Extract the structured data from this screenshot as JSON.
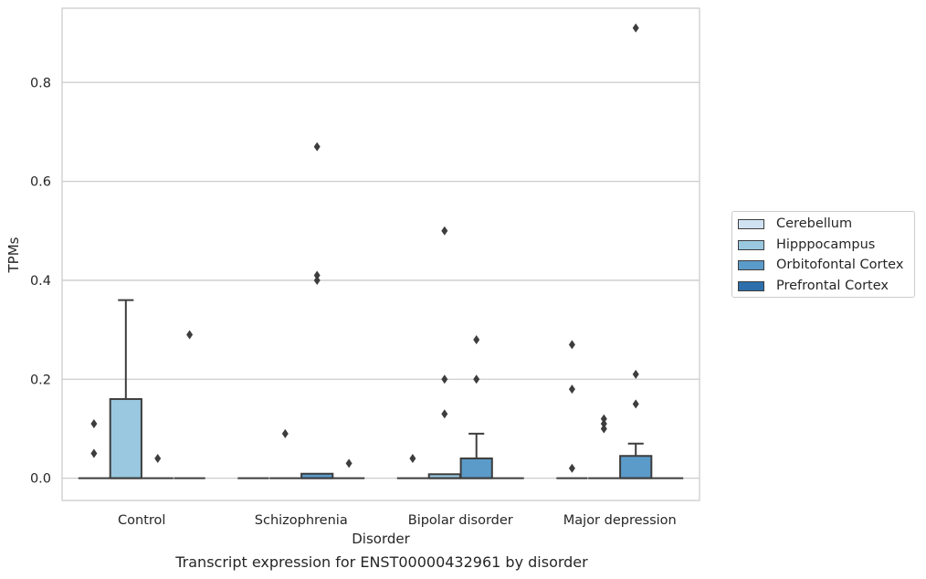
{
  "chart_data": {
    "type": "boxplot",
    "xlabel": "Disorder",
    "ylabel": "TPMs",
    "caption": "Transcript expression for ENST00000432961 by disorder",
    "ylim": [
      -0.045,
      0.95
    ],
    "yticks": [
      0.0,
      0.2,
      0.4,
      0.6,
      0.8
    ],
    "ytick_labels": [
      "0.0",
      "0.2",
      "0.4",
      "0.6",
      "0.8"
    ],
    "grid": "horizontal",
    "legend_position": "right",
    "categories": [
      "Control",
      "Schizophrenia",
      "Bipolar disorder",
      "Major depression"
    ],
    "series": [
      {
        "name": "Cerebellum",
        "color": "#d0e1f2",
        "boxes": [
          {
            "q1": 0,
            "median": 0,
            "q3": 0,
            "whisker_low": 0,
            "whisker_high": 0,
            "outliers": [
              0.11,
              0.05
            ]
          },
          {
            "q1": 0,
            "median": 0,
            "q3": 0,
            "whisker_low": 0,
            "whisker_high": 0,
            "outliers": []
          },
          {
            "q1": 0,
            "median": 0,
            "q3": 0,
            "whisker_low": 0,
            "whisker_high": 0,
            "outliers": [
              0.04
            ]
          },
          {
            "q1": 0,
            "median": 0,
            "q3": 0,
            "whisker_low": 0,
            "whisker_high": 0,
            "outliers": [
              0.27,
              0.18,
              0.02
            ]
          }
        ]
      },
      {
        "name": "Hipppocampus",
        "color": "#9ac8e0",
        "boxes": [
          {
            "q1": 0,
            "median": 0,
            "q3": 0.16,
            "whisker_low": 0,
            "whisker_high": 0.36,
            "outliers": []
          },
          {
            "q1": 0,
            "median": 0,
            "q3": 0,
            "whisker_low": 0,
            "whisker_high": 0,
            "outliers": [
              0.09
            ]
          },
          {
            "q1": 0,
            "median": 0,
            "q3": 0.008,
            "whisker_low": 0,
            "whisker_high": 0.008,
            "outliers": [
              0.5,
              0.2,
              0.13
            ]
          },
          {
            "q1": 0,
            "median": 0,
            "q3": 0,
            "whisker_low": 0,
            "whisker_high": 0,
            "outliers": [
              0.12,
              0.11,
              0.1
            ]
          }
        ]
      },
      {
        "name": "Orbitofontal Cortex",
        "color": "#5b9bc9",
        "boxes": [
          {
            "q1": 0,
            "median": 0,
            "q3": 0,
            "whisker_low": 0,
            "whisker_high": 0,
            "outliers": [
              0.04
            ]
          },
          {
            "q1": 0,
            "median": 0,
            "q3": 0.009,
            "whisker_low": 0,
            "whisker_high": 0.009,
            "outliers": [
              0.67,
              0.41,
              0.4
            ]
          },
          {
            "q1": 0,
            "median": 0,
            "q3": 0.04,
            "whisker_low": 0,
            "whisker_high": 0.09,
            "outliers": [
              0.28,
              0.2
            ]
          },
          {
            "q1": 0,
            "median": 0,
            "q3": 0.045,
            "whisker_low": 0,
            "whisker_high": 0.07,
            "outliers": [
              0.91,
              0.21,
              0.15
            ]
          }
        ]
      },
      {
        "name": "Prefrontal Cortex",
        "color": "#2c6fac",
        "boxes": [
          {
            "q1": 0,
            "median": 0,
            "q3": 0,
            "whisker_low": 0,
            "whisker_high": 0,
            "outliers": [
              0.29
            ]
          },
          {
            "q1": 0,
            "median": 0,
            "q3": 0,
            "whisker_low": 0,
            "whisker_high": 0,
            "outliers": [
              0.03
            ]
          },
          {
            "q1": 0,
            "median": 0,
            "q3": 0,
            "whisker_low": 0,
            "whisker_high": 0,
            "outliers": []
          },
          {
            "q1": 0,
            "median": 0,
            "q3": 0,
            "whisker_low": 0,
            "whisker_high": 0,
            "outliers": []
          }
        ]
      }
    ]
  }
}
